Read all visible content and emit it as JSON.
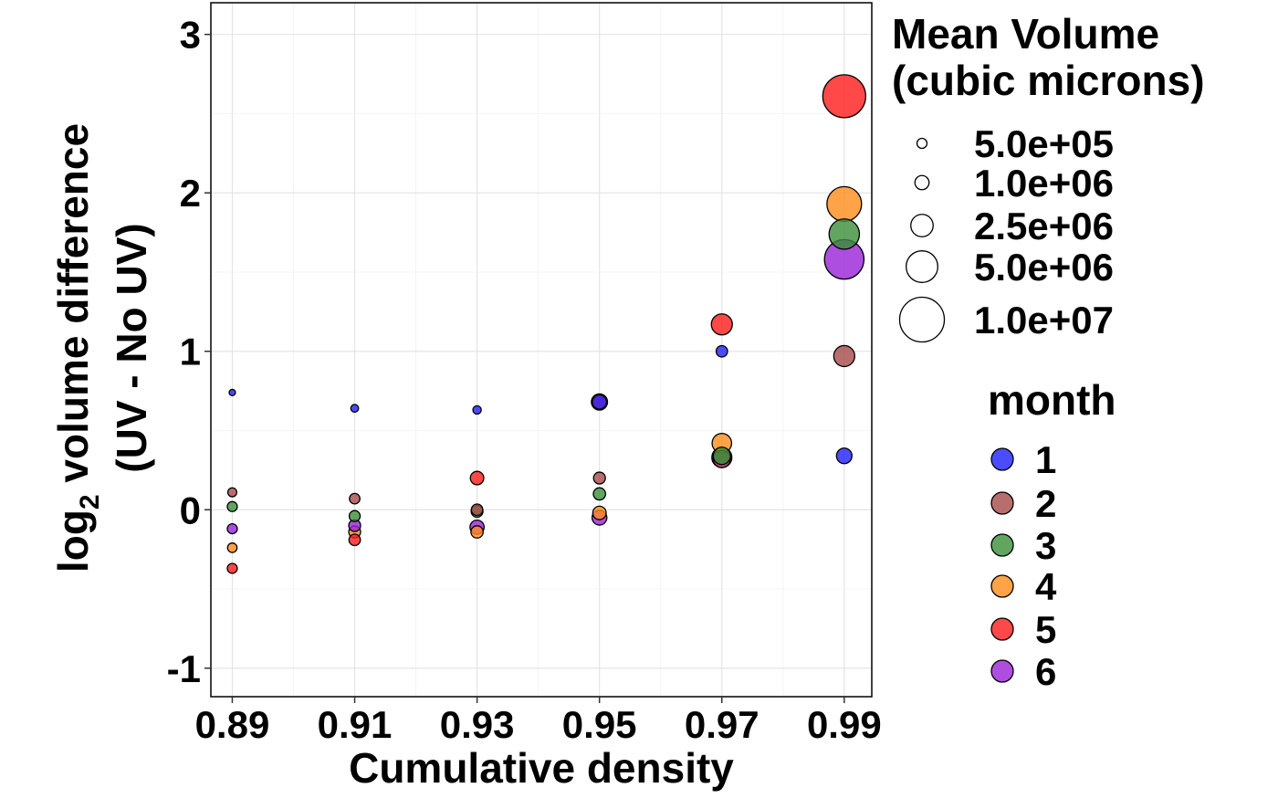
{
  "chart_data": {
    "type": "scatter",
    "xlabel": "Cumulative density",
    "ylabel_prefix": "log",
    "ylabel_subscript": "2",
    "ylabel_rest": " volume difference",
    "ylabel_line2": "(UV - No UV)",
    "x_ticks": [
      "0.89",
      "0.91",
      "0.93",
      "0.95",
      "0.97",
      "0.99"
    ],
    "y_ticks": [
      "-1",
      "0",
      "1",
      "2",
      "3"
    ],
    "xlim": [
      0.8865,
      0.9945
    ],
    "ylim": [
      -1.18,
      3.2
    ],
    "grid": true,
    "legend_position": "right",
    "size_legend": {
      "title_line1": "Mean Volume",
      "title_line2": "(cubic microns)",
      "entries": [
        {
          "label": "5.0e+05",
          "value": 500000
        },
        {
          "label": "1.0e+06",
          "value": 1000000
        },
        {
          "label": "2.5e+06",
          "value": 2500000
        },
        {
          "label": "5.0e+06",
          "value": 5000000
        },
        {
          "label": "1.0e+07",
          "value": 10000000
        }
      ]
    },
    "color_legend": {
      "title": "month",
      "entries": [
        {
          "label": "1",
          "color": "#1f1fff"
        },
        {
          "label": "2",
          "color": "#a84a4a"
        },
        {
          "label": "3",
          "color": "#3a8f3a"
        },
        {
          "label": "4",
          "color": "#ff8c1a"
        },
        {
          "label": "5",
          "color": "#ff1a1a"
        },
        {
          "label": "6",
          "color": "#9a22d8"
        }
      ]
    },
    "series": [
      {
        "month": "1",
        "points": [
          {
            "x": 0.89,
            "y": 0.74,
            "size": 200000
          },
          {
            "x": 0.91,
            "y": 0.64,
            "size": 300000
          },
          {
            "x": 0.93,
            "y": 0.63,
            "size": 350000
          },
          {
            "x": 0.95,
            "y": 0.68,
            "size": 1000000
          },
          {
            "x": 0.97,
            "y": 1.0,
            "size": 650000
          },
          {
            "x": 0.99,
            "y": 0.34,
            "size": 1200000
          }
        ]
      },
      {
        "month": "2",
        "points": [
          {
            "x": 0.89,
            "y": 0.11,
            "size": 400000
          },
          {
            "x": 0.91,
            "y": 0.07,
            "size": 550000
          },
          {
            "x": 0.93,
            "y": 0.0,
            "size": 650000
          },
          {
            "x": 0.95,
            "y": 0.2,
            "size": 700000
          },
          {
            "x": 0.97,
            "y": 0.32,
            "size": 1500000
          },
          {
            "x": 0.99,
            "y": 0.97,
            "size": 2200000
          }
        ]
      },
      {
        "month": "3",
        "points": [
          {
            "x": 0.89,
            "y": 0.02,
            "size": 500000
          },
          {
            "x": 0.91,
            "y": -0.04,
            "size": 600000
          },
          {
            "x": 0.93,
            "y": -0.01,
            "size": 700000
          },
          {
            "x": 0.95,
            "y": 0.1,
            "size": 750000
          },
          {
            "x": 0.97,
            "y": 0.34,
            "size": 1500000
          },
          {
            "x": 0.99,
            "y": 1.74,
            "size": 4600000
          }
        ]
      },
      {
        "month": "4",
        "points": [
          {
            "x": 0.89,
            "y": -0.24,
            "size": 450000
          },
          {
            "x": 0.91,
            "y": -0.14,
            "size": 700000
          },
          {
            "x": 0.93,
            "y": -0.14,
            "size": 750000
          },
          {
            "x": 0.95,
            "y": -0.02,
            "size": 900000
          },
          {
            "x": 0.97,
            "y": 0.42,
            "size": 1900000
          },
          {
            "x": 0.99,
            "y": 1.93,
            "size": 6000000
          }
        ]
      },
      {
        "month": "5",
        "points": [
          {
            "x": 0.89,
            "y": -0.37,
            "size": 500000
          },
          {
            "x": 0.91,
            "y": -0.19,
            "size": 650000
          },
          {
            "x": 0.93,
            "y": 0.2,
            "size": 900000
          },
          {
            "x": 0.95,
            "y": 0.68,
            "size": 1300000
          },
          {
            "x": 0.97,
            "y": 1.17,
            "size": 2200000
          },
          {
            "x": 0.99,
            "y": 2.61,
            "size": 9200000
          }
        ]
      },
      {
        "month": "6",
        "points": [
          {
            "x": 0.89,
            "y": -0.12,
            "size": 500000
          },
          {
            "x": 0.91,
            "y": -0.1,
            "size": 700000
          },
          {
            "x": 0.93,
            "y": -0.11,
            "size": 1000000
          },
          {
            "x": 0.95,
            "y": -0.05,
            "size": 1100000
          },
          {
            "x": 0.97,
            "y": 0.33,
            "size": 2000000
          },
          {
            "x": 0.99,
            "y": 1.58,
            "size": 7800000
          }
        ]
      }
    ]
  }
}
